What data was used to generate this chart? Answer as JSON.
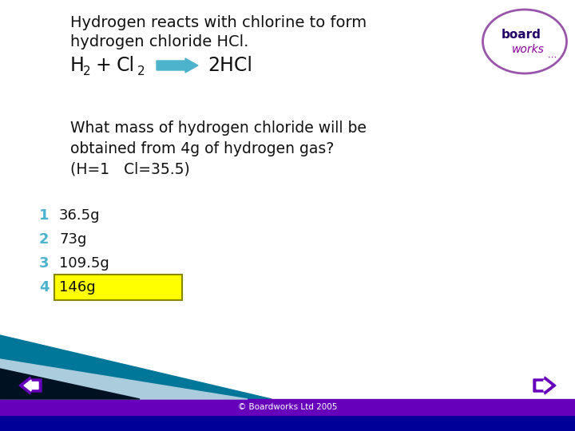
{
  "main_bg": "#ffffff",
  "title_line1": "Hydrogen reacts with chlorine to form",
  "title_line2": "hydrogen chloride HCl.",
  "question_line1": "What mass of hydrogen chloride will be",
  "question_line2": "obtained from 4g of hydrogen gas?",
  "question_line3": "(H=1   Cl=35.5)",
  "options": [
    "36.5g",
    "73g",
    "109.5g",
    "146g"
  ],
  "option_numbers": [
    "1",
    "2",
    "3",
    "4"
  ],
  "number_color": "#4db3cc",
  "highlighted_option": 3,
  "highlight_color": "#ffff00",
  "highlight_border": "#888800",
  "text_color": "#111111",
  "arrow_color": "#4db3cc",
  "footer_text": "© Boardworks Ltd 2005",
  "footer_color": "#ffffff",
  "bottom_bar_color": "#6600bb",
  "bottom_bar2_color": "#000099",
  "bottom_panel_teal": "#007799",
  "bottom_panel_light": "#aaccdd",
  "bottom_panel_dark": "#001122",
  "nav_arrow_color": "#6600bb",
  "logo_ellipse_color": "#9955aa",
  "logo_board_color": "#220066",
  "logo_works_color": "#880099",
  "logo_dots_color": "#880099"
}
